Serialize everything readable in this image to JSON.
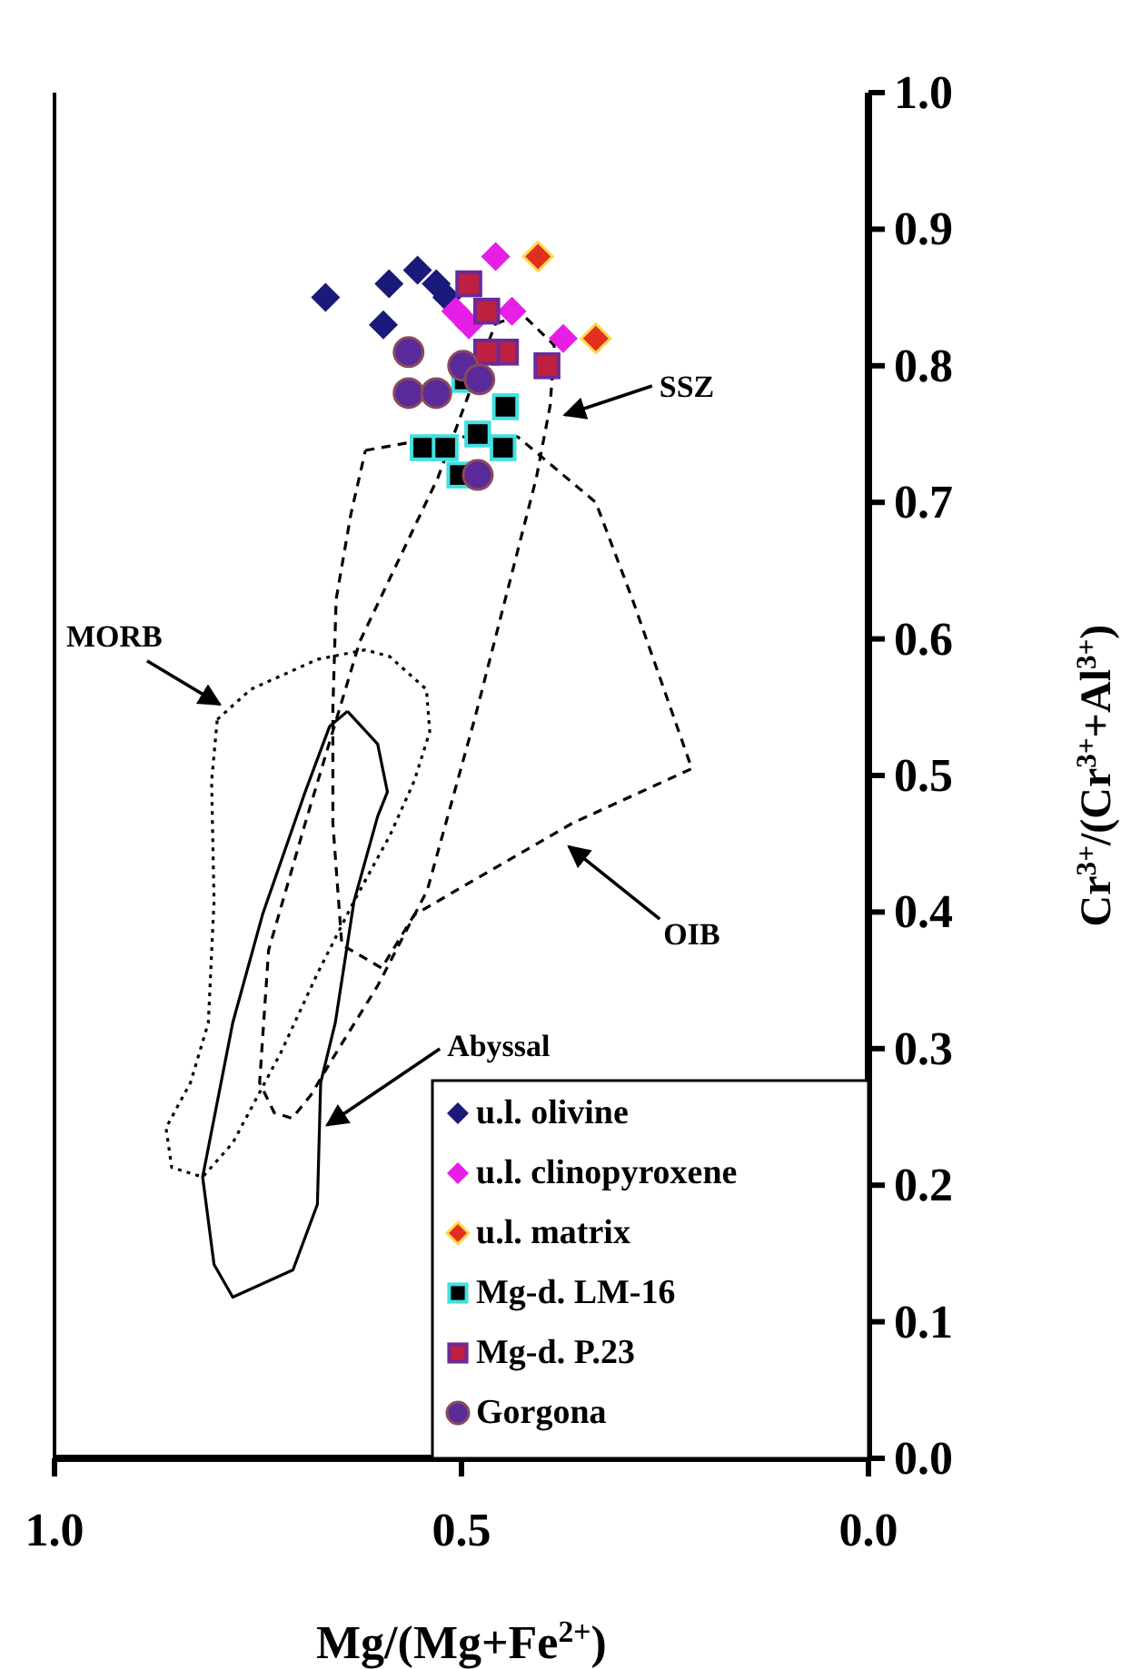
{
  "chart_data": {
    "type": "scatter",
    "xlabel": "Mg/(Mg+Fe$^{2+}$)",
    "ylabel": "Cr$^{3+}$/(Cr$^{3+}$+Al$^{3+}$)",
    "xlim": [
      1,
      0
    ],
    "ylim": [
      0,
      1
    ],
    "xticks": [
      {
        "value": 1,
        "label": "1.0"
      },
      {
        "value": 0.5,
        "label": "0.5"
      },
      {
        "value": 0,
        "label": "0.0"
      }
    ],
    "yticks": [
      {
        "value": 0,
        "label": "0.0"
      },
      {
        "value": 0.1,
        "label": "0.1"
      },
      {
        "value": 0.2,
        "label": "0.2"
      },
      {
        "value": 0.3,
        "label": "0.3"
      },
      {
        "value": 0.4,
        "label": "0.4"
      },
      {
        "value": 0.5,
        "label": "0.5"
      },
      {
        "value": 0.6,
        "label": "0.6"
      },
      {
        "value": 0.7,
        "label": "0.7"
      },
      {
        "value": 0.8,
        "label": "0.8"
      },
      {
        "value": 0.9,
        "label": "0.9"
      },
      {
        "value": 1,
        "label": "1.0"
      }
    ],
    "grid": false,
    "legend": "bottom right",
    "series": [
      {
        "name": "u.l. olivine",
        "marker": "diamond",
        "color": "#1a1a7a",
        "x": [
          0.667,
          0.589,
          0.554,
          0.531,
          0.518,
          0.596
        ],
        "values": [
          0.85,
          0.86,
          0.87,
          0.86,
          0.85,
          0.83
        ]
      },
      {
        "name": "u.l. clinopyroxene",
        "marker": "diamond",
        "color": "#e61ee6",
        "x": [
          0.458,
          0.507,
          0.438,
          0.375,
          0.491
        ],
        "values": [
          0.88,
          0.84,
          0.84,
          0.82,
          0.83
        ]
      },
      {
        "name": "u.l. matrix",
        "marker": "diamond",
        "color": "#e0301e",
        "x": [
          0.406,
          0.335
        ],
        "values": [
          0.88,
          0.82
        ]
      },
      {
        "name": "Mg-d. LM-16",
        "marker": "square",
        "color": "#000000",
        "x": [
          0.496,
          0.446,
          0.449,
          0.48,
          0.547,
          0.52,
          0.502
        ],
        "values": [
          0.79,
          0.77,
          0.74,
          0.75,
          0.74,
          0.74,
          0.72
        ]
      },
      {
        "name": "Mg-d. P.23",
        "marker": "square",
        "color": "#c02040",
        "x": [
          0.491,
          0.469,
          0.446,
          0.395,
          0.469
        ],
        "values": [
          0.86,
          0.84,
          0.81,
          0.8,
          0.81
        ]
      },
      {
        "name": "Gorgona",
        "marker": "circle",
        "color": "#5a2a9a",
        "x": [
          0.565,
          0.565,
          0.531,
          0.498,
          0.478,
          0.48
        ],
        "values": [
          0.81,
          0.78,
          0.78,
          0.8,
          0.79,
          0.72
        ]
      }
    ],
    "annotations": [
      "MORB",
      "SSZ",
      "OIB",
      "Abyssal"
    ]
  }
}
